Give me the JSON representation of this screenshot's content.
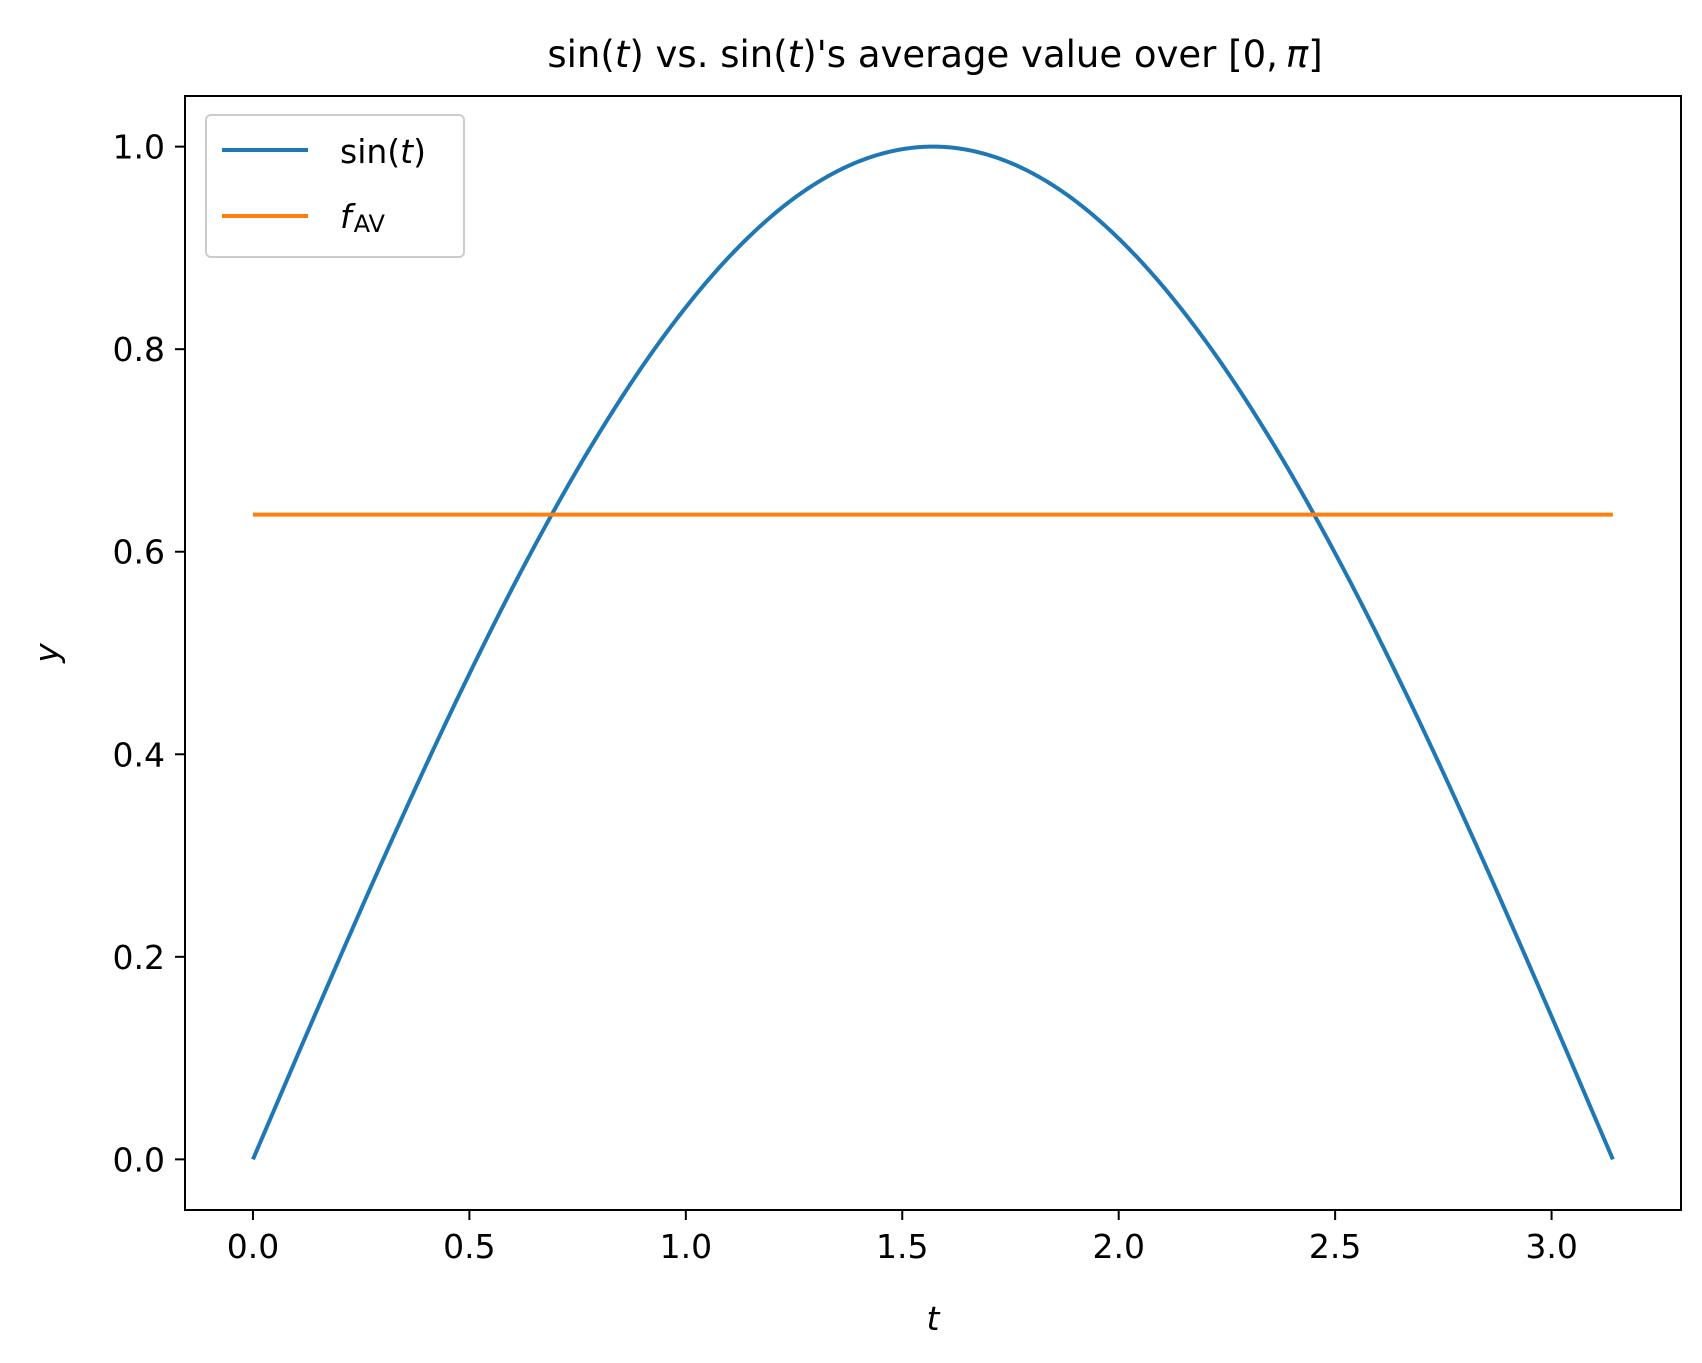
{
  "chart_data": {
    "type": "line",
    "title": {
      "prefix": "sin(",
      "var1": "t",
      "mid": ") vs. sin(",
      "var2": "t",
      "rest": ")'s average value over [0,",
      "pi": "π",
      "suffix": "]"
    },
    "xlabel": "t",
    "ylabel": "y",
    "xlim": [
      -0.157,
      3.299
    ],
    "ylim": [
      -0.05,
      1.05
    ],
    "xticks": [
      0.0,
      0.5,
      1.0,
      1.5,
      2.0,
      2.5,
      3.0
    ],
    "xtick_labels": [
      "0.0",
      "0.5",
      "1.0",
      "1.5",
      "2.0",
      "2.5",
      "3.0"
    ],
    "yticks": [
      0.0,
      0.2,
      0.4,
      0.6,
      0.8,
      1.0
    ],
    "ytick_labels": [
      "0.0",
      "0.2",
      "0.4",
      "0.6",
      "0.8",
      "1.0"
    ],
    "grid": false,
    "legend_position": "upper-left",
    "series": [
      {
        "name": "sin(t)",
        "legend": {
          "prefix": "sin(",
          "var": "t",
          "suffix": ")"
        },
        "color": "#1f77b4",
        "x": [
          0.0,
          0.1571,
          0.3142,
          0.4712,
          0.6283,
          0.7854,
          0.9425,
          1.0996,
          1.2566,
          1.4137,
          1.5708,
          1.7279,
          1.885,
          2.042,
          2.1991,
          2.3562,
          2.5133,
          2.6704,
          2.8274,
          2.9845,
          3.1416
        ],
        "y": [
          0.0,
          0.1564,
          0.309,
          0.454,
          0.5878,
          0.7071,
          0.809,
          0.891,
          0.9511,
          0.9877,
          1.0,
          0.9877,
          0.9511,
          0.891,
          0.809,
          0.7071,
          0.5878,
          0.454,
          0.309,
          0.1564,
          0.0
        ]
      },
      {
        "name": "f_AV",
        "legend": {
          "main": "f",
          "sub": "AV"
        },
        "color": "#ff7f0e",
        "x": [
          0.0,
          3.1416
        ],
        "y": [
          0.6366,
          0.6366
        ]
      }
    ]
  }
}
